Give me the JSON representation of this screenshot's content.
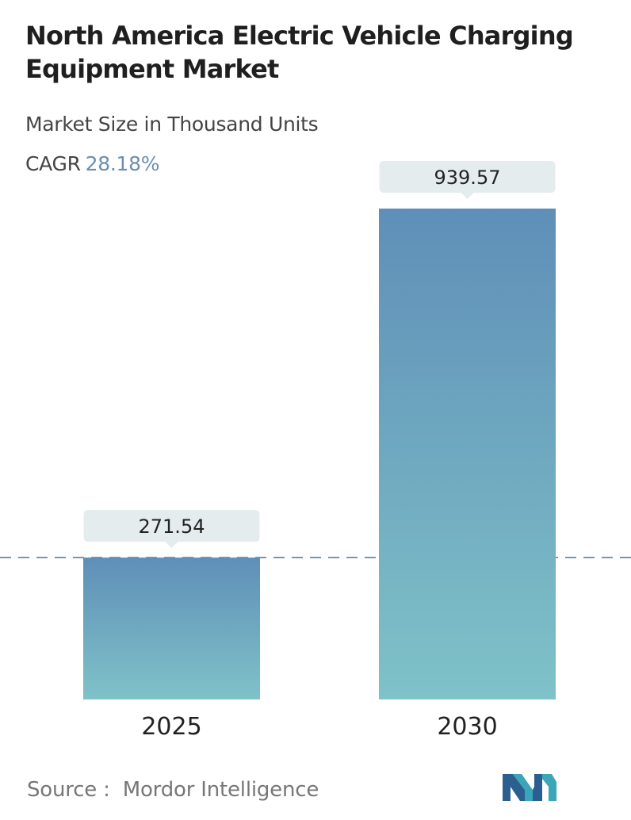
{
  "title": "North America Electric Vehicle Charging Equipment Market",
  "subtitle": "Market Size in Thousand Units",
  "cagr": {
    "label": "CAGR",
    "value": "28.18%"
  },
  "chart_data": {
    "type": "bar",
    "title": "North America Electric Vehicle Charging Equipment Market",
    "subtitle": "Market Size in Thousand Units",
    "categories": [
      "2025",
      "2030"
    ],
    "values": [
      271.54,
      939.57
    ],
    "value_labels": [
      "271.54",
      "939.57"
    ],
    "xlabel": "",
    "ylabel": "",
    "ylim": [
      0,
      1020
    ],
    "grid": false,
    "legend": "none",
    "reference_line": {
      "value": 271.54,
      "style": "dashed"
    }
  },
  "colors": {
    "bar_top": "#5f8fb8",
    "bar_bottom": "#7fc2c8",
    "label_box": "#e5ecee",
    "dash": "#5b7d99",
    "cagr_value": "#6b8fb0"
  },
  "source": {
    "label": "Source :",
    "value": "Mordor Intelligence"
  },
  "logo": {
    "icon": "mordor-intelligence-logo-icon"
  }
}
